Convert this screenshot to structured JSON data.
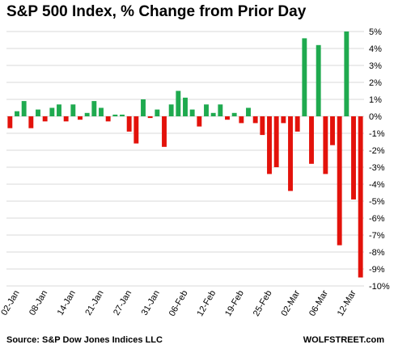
{
  "chart_data": {
    "type": "bar",
    "title": "S&P 500 Index, % Change from Prior Day",
    "source": "Source: S&P Dow Jones Indices LLC",
    "brand": "WOLFSTREET.com",
    "ylim": [
      -10,
      5
    ],
    "yticks": [
      5,
      4,
      3,
      2,
      1,
      0,
      -1,
      -2,
      -3,
      -4,
      -5,
      -6,
      -7,
      -8,
      -9,
      -10
    ],
    "ytick_labels": [
      "5%",
      "4%",
      "3%",
      "2%",
      "1%",
      "0%",
      "-1%",
      "-2%",
      "-3%",
      "-4%",
      "-5%",
      "-6%",
      "-7%",
      "-8%",
      "-9%",
      "-10%"
    ],
    "grid": "horizontal",
    "positive_color": "#1faa4f",
    "negative_color": "#e3120b",
    "values": [
      -0.7,
      0.3,
      0.9,
      -0.7,
      0.4,
      -0.3,
      0.5,
      0.7,
      -0.3,
      0.7,
      -0.2,
      0.2,
      0.9,
      0.5,
      -0.3,
      0.1,
      0.1,
      -0.9,
      -1.6,
      1.0,
      -0.1,
      0.4,
      -1.8,
      0.7,
      1.5,
      1.1,
      0.4,
      -0.6,
      0.7,
      0.2,
      0.7,
      -0.2,
      0.2,
      -0.4,
      0.5,
      -0.4,
      -1.1,
      -3.4,
      -3.0,
      -0.4,
      -4.4,
      -0.9,
      4.6,
      -2.8,
      4.2,
      -3.4,
      -1.7,
      -7.6,
      5.0,
      -4.9,
      -9.5
    ],
    "xtick_labels": [
      {
        "label": "02-Jan",
        "index": 1
      },
      {
        "label": "08-Jan",
        "index": 5
      },
      {
        "label": "14-Jan",
        "index": 9
      },
      {
        "label": "21-Jan",
        "index": 13
      },
      {
        "label": "27-Jan",
        "index": 17
      },
      {
        "label": "31-Jan",
        "index": 21
      },
      {
        "label": "06-Feb",
        "index": 25
      },
      {
        "label": "12-Feb",
        "index": 29
      },
      {
        "label": "19-Feb",
        "index": 33
      },
      {
        "label": "25-Feb",
        "index": 37
      },
      {
        "label": "02-Mar",
        "index": 41
      },
      {
        "label": "06-Mar",
        "index": 45
      },
      {
        "label": "12-Mar",
        "index": 49
      }
    ]
  }
}
